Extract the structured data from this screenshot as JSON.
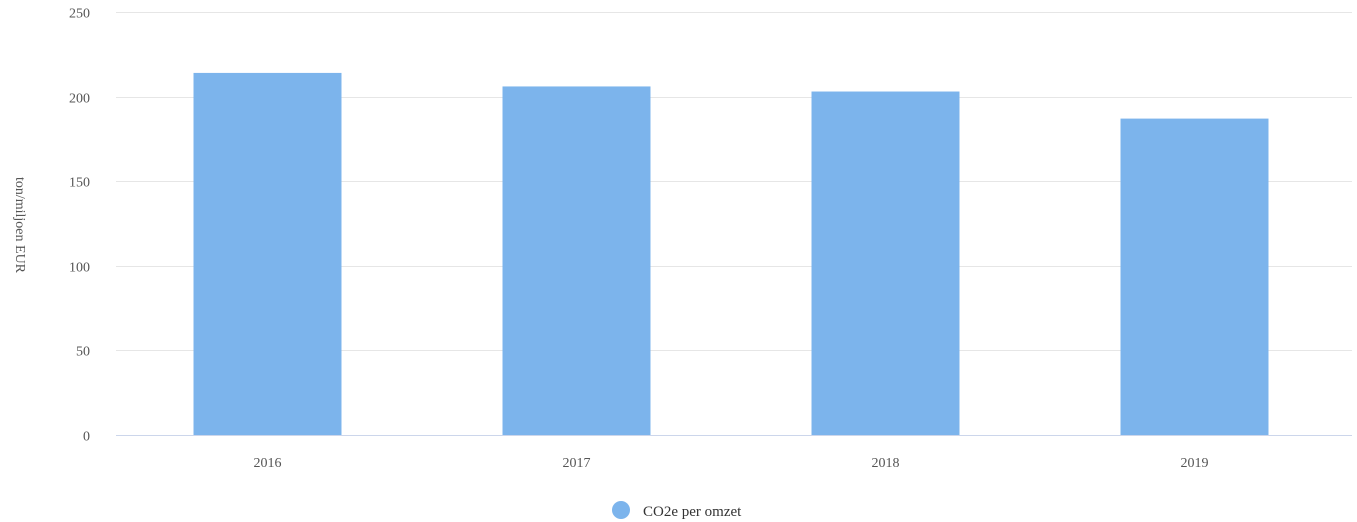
{
  "chart_data": {
    "type": "bar",
    "categories": [
      "2016",
      "2017",
      "2018",
      "2019"
    ],
    "series": [
      {
        "name": "CO2e per omzet",
        "values": [
          214,
          206,
          203,
          187
        ],
        "color": "#7cb4ec"
      }
    ],
    "ylabel": "ton/miljoen EUR",
    "ylim": [
      0,
      250
    ],
    "yticks": [
      0,
      50,
      100,
      150,
      200,
      250
    ],
    "grid": true,
    "legend": "bottom-center"
  }
}
